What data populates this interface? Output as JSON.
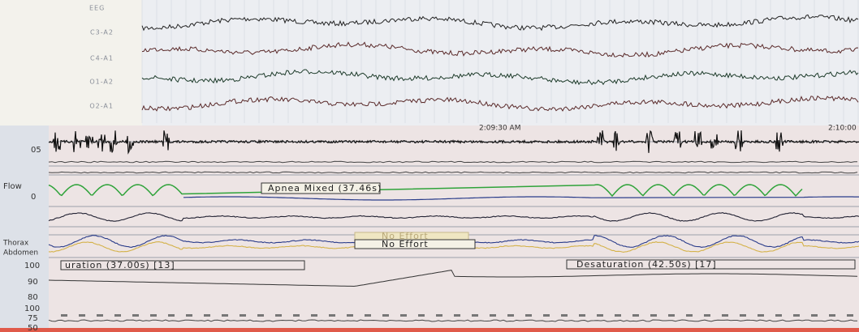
{
  "eeg_panel": {
    "group_label": "EEG",
    "channels": [
      "C3-A2",
      "C4-A1",
      "O1-A2",
      "O2-A1"
    ]
  },
  "respiratory_panel": {
    "time_labels": [
      "2:09:30 AM",
      "2:10:00"
    ],
    "channels": [
      "05",
      "Flow",
      "0",
      "Thorax",
      "Abdomen"
    ],
    "events": {
      "apnea": "Apnea Mixed (37.46s)",
      "effort_1": "No Effort",
      "effort_2": "No Effort",
      "desat_1": "uration (37.00s) [13]",
      "desat_2": "Desaturation (42.50s) [17]"
    },
    "spo2_scale": [
      "100",
      "90",
      "80"
    ],
    "pulse_scale": [
      "100",
      "75",
      "50"
    ]
  }
}
